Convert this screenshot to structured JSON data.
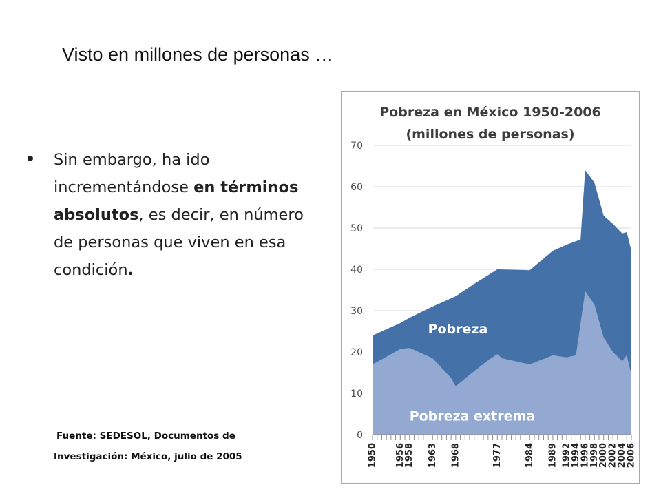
{
  "slide": {
    "title": "Visto en millones de personas …",
    "bullet": {
      "text_1": "Sin embargo, ha ido incrementándose ",
      "bold": "en términos absolutos",
      "text_2": ", es decir, en número de personas que viven en esa condición",
      "end": "."
    },
    "source_line1": "Fuente: SEDESOL, Documentos de",
    "source_line2": "Investigación: México, julio de 2005"
  },
  "chart_data": {
    "type": "area",
    "title": "Pobreza en México 1950-2006",
    "subtitle": "(millones de personas)",
    "ylim": [
      0,
      70
    ],
    "y_ticks": [
      0,
      10,
      20,
      30,
      40,
      50,
      60,
      70
    ],
    "x_tick_labels": [
      "1950",
      "1956",
      "1958",
      "1963",
      "1968",
      "1977",
      "1984",
      "1989",
      "1992",
      "1994",
      "1996",
      "1998",
      "2000",
      "2002",
      "2004",
      "2006"
    ],
    "grid": true,
    "series": [
      {
        "name": "Pobreza",
        "color": "#4472a8",
        "label_pos": [
          1962,
          24.5
        ],
        "points": [
          [
            1950,
            24
          ],
          [
            1956,
            27
          ],
          [
            1958,
            28.3
          ],
          [
            1963,
            31
          ],
          [
            1968,
            33.5
          ],
          [
            1972,
            36.5
          ],
          [
            1977,
            40
          ],
          [
            1984,
            39.8
          ],
          [
            1989,
            44.5
          ],
          [
            1992,
            46
          ],
          [
            1995,
            47.2
          ],
          [
            1996,
            64
          ],
          [
            1998,
            61
          ],
          [
            2000,
            53
          ],
          [
            2002,
            51
          ],
          [
            2004,
            48.7
          ],
          [
            2005,
            49
          ],
          [
            2006,
            44.5
          ]
        ]
      },
      {
        "name": "Pobreza extrema",
        "color": "#93a9d2",
        "label_pos": [
          1958,
          3.4
        ],
        "points": [
          [
            1950,
            17
          ],
          [
            1956,
            20.7
          ],
          [
            1958,
            21
          ],
          [
            1963,
            18.5
          ],
          [
            1967,
            13.7
          ],
          [
            1968,
            11.7
          ],
          [
            1971,
            14.5
          ],
          [
            1975,
            18
          ],
          [
            1977,
            19.5
          ],
          [
            1978,
            18.5
          ],
          [
            1984,
            17
          ],
          [
            1989,
            19.2
          ],
          [
            1992,
            18.7
          ],
          [
            1994,
            19.2
          ],
          [
            1996,
            34.7
          ],
          [
            1998,
            31.5
          ],
          [
            2000,
            23.5
          ],
          [
            2002,
            20
          ],
          [
            2004,
            17.8
          ],
          [
            2005,
            19.2
          ],
          [
            2006,
            14.5
          ]
        ]
      }
    ]
  }
}
